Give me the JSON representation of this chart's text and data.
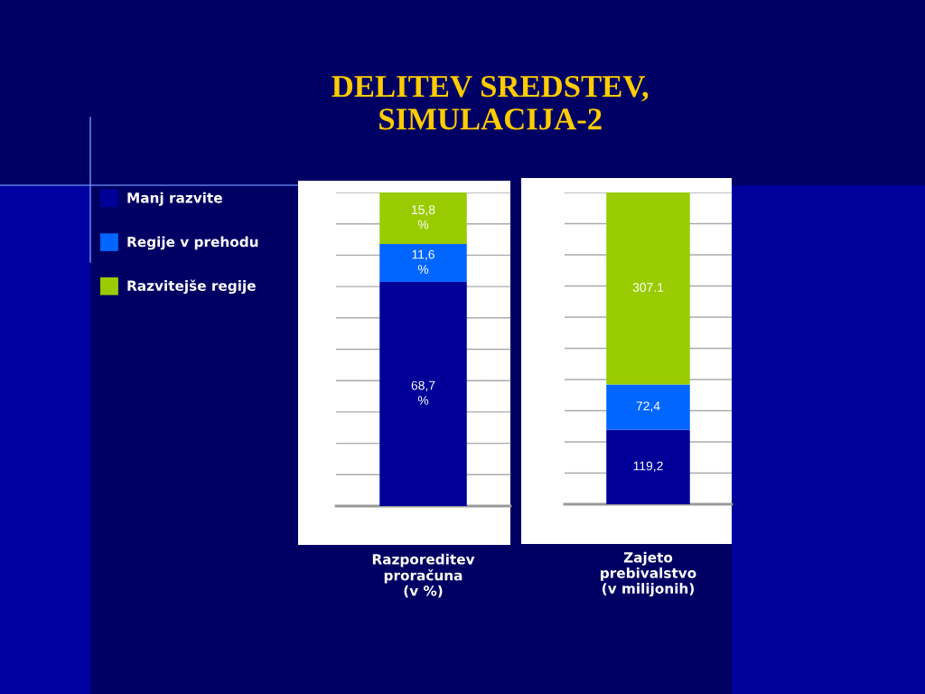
{
  "chart_data": [
    {
      "type": "bar",
      "title": "DELITEV SREDSTEV,\nSIMULACIJA-2",
      "stacked": true,
      "categories": [
        "Razporeditev\nproračuna\n(v %)"
      ],
      "series": [
        {
          "name": "Manj razvite",
          "color": "#000099",
          "values": [
            68.7
          ],
          "value_labels": [
            "68,7\n%"
          ]
        },
        {
          "name": "Regije v prehodu",
          "color": "#0066ff",
          "values": [
            11.6
          ],
          "value_labels": [
            "11,6\n%"
          ]
        },
        {
          "name": "Razvitejše regije",
          "color": "#99cc00",
          "values": [
            15.8
          ],
          "value_labels": [
            "15,8\n%"
          ]
        }
      ],
      "grid": "y",
      "legend": "left",
      "tick_labels": "x"
    },
    {
      "type": "bar",
      "stacked": true,
      "categories": [
        "Zajeto\nprebivalstvo\n(v milijonih)"
      ],
      "series": [
        {
          "name": "Manj razvite",
          "color": "#000099",
          "values": [
            119.2
          ],
          "value_labels": [
            "119,2"
          ]
        },
        {
          "name": "Regije v prehodu",
          "color": "#0066ff",
          "values": [
            72.4
          ],
          "value_labels": [
            "72,4"
          ]
        },
        {
          "name": "Razvitejše regije",
          "color": "#99cc00",
          "values": [
            307.1
          ],
          "value_labels": [
            "307.1"
          ]
        }
      ],
      "grid": "y",
      "tick_labels": "x"
    }
  ]
}
